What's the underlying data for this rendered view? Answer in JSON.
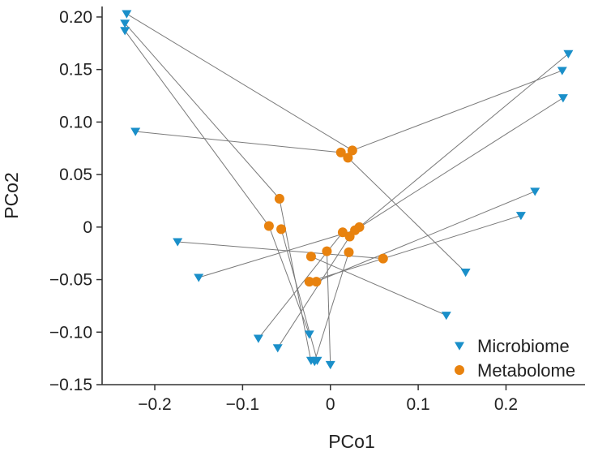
{
  "chart_data": {
    "type": "scatter",
    "title": "",
    "xlabel": "PCo1",
    "ylabel": "PCo2",
    "xlim": [
      -0.26,
      0.29
    ],
    "ylim": [
      -0.15,
      0.21
    ],
    "xticks": [
      -0.2,
      -0.1,
      0,
      0.1,
      0.2
    ],
    "xtick_labels": [
      "−0.2",
      "−0.1",
      "0",
      "0.1",
      "0.2"
    ],
    "yticks": [
      -0.15,
      -0.1,
      -0.05,
      0,
      0.05,
      0.1,
      0.15,
      0.2
    ],
    "ytick_labels": [
      "−0.15",
      "−0.10",
      "−0.05",
      "0",
      "0.05",
      "0.10",
      "0.15",
      "0.20"
    ],
    "series": [
      {
        "name": "Microbiome",
        "marker": "triangle-down",
        "color": "#1a8fc9",
        "points": [
          [
            -0.232,
            0.203
          ],
          [
            -0.234,
            0.194
          ],
          [
            -0.234,
            0.187
          ],
          [
            -0.222,
            0.091
          ],
          [
            -0.174,
            -0.014
          ],
          [
            -0.15,
            -0.048
          ],
          [
            -0.082,
            -0.106
          ],
          [
            -0.06,
            -0.115
          ],
          [
            -0.024,
            -0.102
          ],
          [
            -0.022,
            -0.127
          ],
          [
            -0.018,
            -0.128
          ],
          [
            -0.015,
            -0.127
          ],
          [
            0.0,
            -0.131
          ],
          [
            0.132,
            -0.084
          ],
          [
            0.154,
            -0.043
          ],
          [
            0.217,
            0.011
          ],
          [
            0.233,
            0.034
          ],
          [
            0.264,
            0.149
          ],
          [
            0.265,
            0.123
          ],
          [
            0.271,
            0.165
          ]
        ]
      },
      {
        "name": "Metabolome",
        "marker": "circle",
        "color": "#e8820e",
        "points": [
          [
            -0.07,
            0.001
          ],
          [
            -0.058,
            0.027
          ],
          [
            -0.056,
            -0.002
          ],
          [
            -0.024,
            -0.052
          ],
          [
            -0.022,
            -0.028
          ],
          [
            -0.016,
            -0.052
          ],
          [
            -0.004,
            -0.023
          ],
          [
            0.012,
            0.071
          ],
          [
            0.014,
            -0.005
          ],
          [
            0.02,
            0.066
          ],
          [
            0.021,
            -0.024
          ],
          [
            0.022,
            -0.009
          ],
          [
            0.025,
            0.073
          ],
          [
            0.028,
            -0.003
          ],
          [
            0.033,
            0.0
          ],
          [
            0.06,
            -0.03
          ]
        ]
      }
    ],
    "pairs": [
      [
        [
          -0.232,
          0.203
        ],
        [
          0.025,
          0.073
        ]
      ],
      [
        [
          -0.234,
          0.194
        ],
        [
          -0.058,
          0.027
        ]
      ],
      [
        [
          -0.234,
          0.187
        ],
        [
          -0.07,
          0.001
        ]
      ],
      [
        [
          -0.222,
          0.091
        ],
        [
          0.012,
          0.071
        ]
      ],
      [
        [
          0.264,
          0.149
        ],
        [
          0.025,
          0.073
        ]
      ],
      [
        [
          0.02,
          0.066
        ],
        [
          0.154,
          -0.043
        ]
      ],
      [
        [
          -0.174,
          -0.014
        ],
        [
          0.06,
          -0.03
        ]
      ],
      [
        [
          -0.15,
          -0.048
        ],
        [
          0.028,
          -0.003
        ]
      ],
      [
        [
          -0.058,
          0.027
        ],
        [
          -0.022,
          -0.128
        ]
      ],
      [
        [
          -0.07,
          0.001
        ],
        [
          -0.024,
          -0.102
        ]
      ],
      [
        [
          -0.056,
          -0.002
        ],
        [
          -0.015,
          -0.127
        ]
      ],
      [
        [
          -0.024,
          -0.052
        ],
        [
          0.217,
          0.011
        ]
      ],
      [
        [
          -0.016,
          -0.052
        ],
        [
          0.233,
          0.034
        ]
      ],
      [
        [
          -0.022,
          -0.028
        ],
        [
          0.132,
          -0.084
        ]
      ],
      [
        [
          0.014,
          -0.005
        ],
        [
          -0.082,
          -0.106
        ]
      ],
      [
        [
          0.022,
          -0.009
        ],
        [
          -0.06,
          -0.115
        ]
      ],
      [
        [
          0.033,
          0.0
        ],
        [
          0.271,
          0.165
        ]
      ],
      [
        [
          0.028,
          -0.003
        ],
        [
          0.265,
          0.123
        ]
      ],
      [
        [
          -0.004,
          -0.023
        ],
        [
          0.0,
          -0.131
        ]
      ],
      [
        [
          0.021,
          -0.024
        ],
        [
          -0.018,
          -0.128
        ]
      ]
    ],
    "grid": false,
    "legend": "bottom-right",
    "legend_entries": [
      "Microbiome",
      "Metabolome"
    ],
    "connector_color": "#7a7a7a",
    "axis_color": "#333333"
  }
}
